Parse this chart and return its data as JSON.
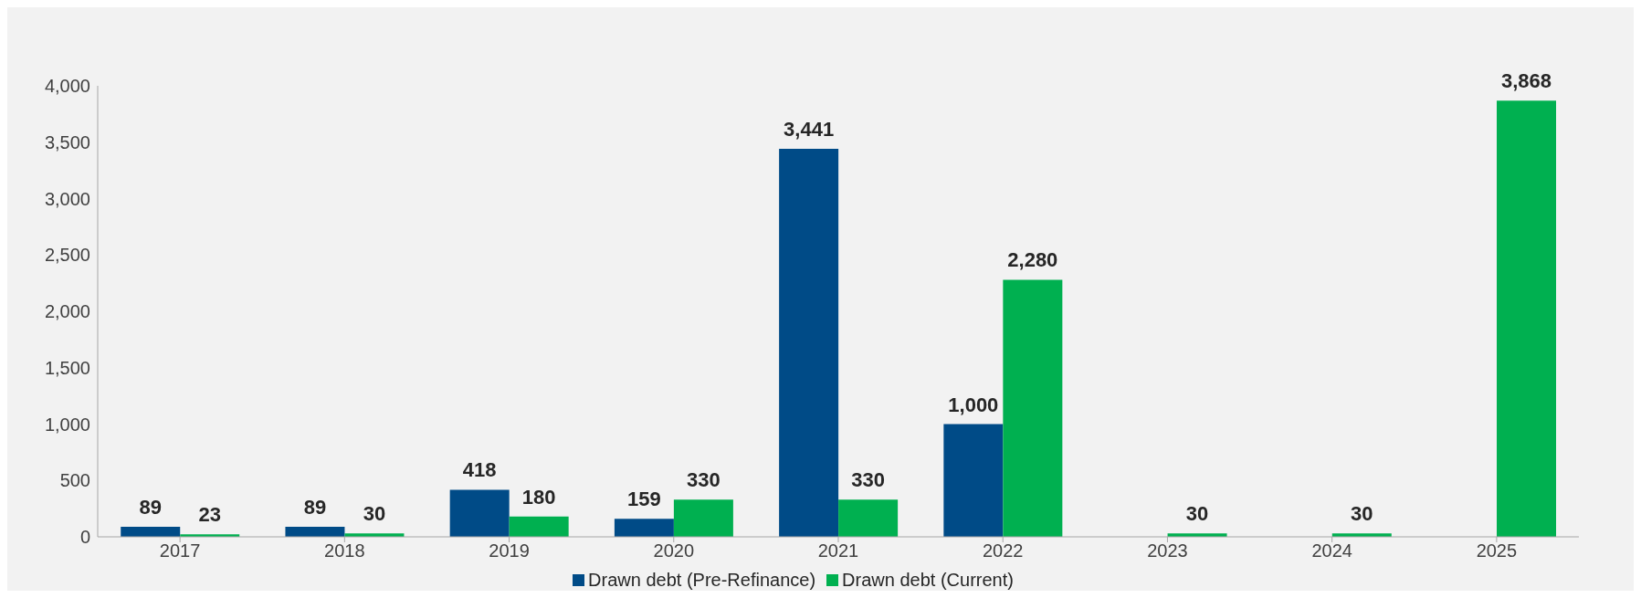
{
  "chart_data": {
    "type": "bar",
    "categories": [
      "2017",
      "2018",
      "2019",
      "2020",
      "2021",
      "2022",
      "2023",
      "2024",
      "2025"
    ],
    "series": [
      {
        "name": "Drawn debt (Pre-Refinance)",
        "color": "#004b87",
        "values": [
          89,
          89,
          418,
          159,
          3441,
          1000,
          null,
          null,
          null
        ],
        "value_labels": [
          "89",
          "89",
          "418",
          "159",
          "3,441",
          "1,000",
          null,
          null,
          null
        ]
      },
      {
        "name": "Drawn debt (Current)",
        "color": "#00b050",
        "values": [
          23,
          30,
          180,
          330,
          330,
          2280,
          30,
          30,
          3868
        ],
        "value_labels": [
          "23",
          "30",
          "180",
          "330",
          "330",
          "2,280",
          "30",
          "30",
          "3,868"
        ]
      }
    ],
    "ylim": [
      0,
      4000
    ],
    "yticks": [
      0,
      500,
      {
        "value": 1000,
        "label": "1,000"
      },
      {
        "value": 1500,
        "label": "1,500"
      },
      {
        "value": 2000,
        "label": "2,000"
      },
      {
        "value": 2500,
        "label": "2,500"
      },
      {
        "value": 3000,
        "label": "3,000"
      },
      {
        "value": 3500,
        "label": "3,500"
      },
      {
        "value": 4000,
        "label": "4,000"
      }
    ],
    "grid": false,
    "legend": "bottom"
  }
}
